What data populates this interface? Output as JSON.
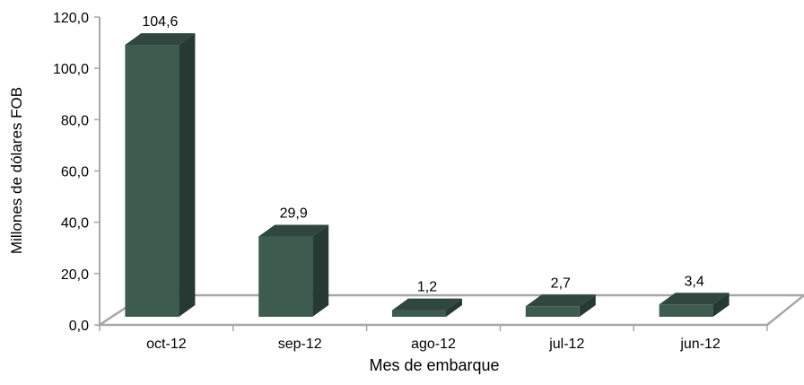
{
  "chart_data": {
    "type": "bar",
    "title": "",
    "xlabel": "Mes de embarque",
    "ylabel": "Millones de dólares FOB",
    "categories": [
      "oct-12",
      "sep-12",
      "ago-12",
      "jul-12",
      "jun-12"
    ],
    "values": [
      104.6,
      29.9,
      1.2,
      2.7,
      3.4
    ],
    "value_labels": [
      "104,6",
      "29,9",
      "1,2",
      "2,7",
      "3,4"
    ],
    "yticks": [
      "0,0",
      "20,0",
      "40,0",
      "60,0",
      "80,0",
      "100,0",
      "120,0"
    ],
    "ylim": [
      0,
      120
    ],
    "grid": false,
    "legend": "none",
    "style": "3d",
    "colors": {
      "bar_front": "#3e5b50",
      "bar_side": "#263a33",
      "bar_top": "#2f473e",
      "axis": "#a6a6a6"
    }
  }
}
